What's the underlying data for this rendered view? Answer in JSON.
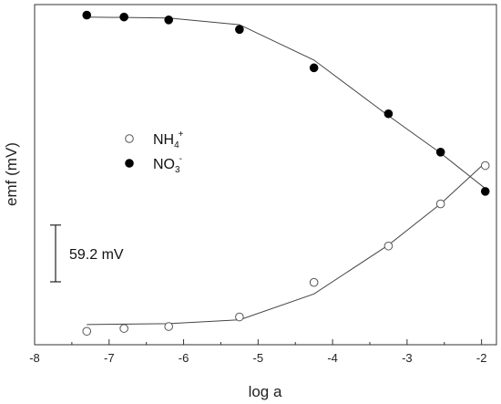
{
  "chart_data": {
    "type": "scatter",
    "xlabel": "log a",
    "ylabel": "emf (mV)",
    "xlim": [
      -8,
      -1.8
    ],
    "x_ticks": [
      -8,
      -7,
      -6,
      -5,
      -4,
      -3,
      -2
    ],
    "x_tick_labels": [
      "-8",
      "-7",
      "-6",
      "-5",
      "-4",
      "-3",
      "-2"
    ],
    "y_ticks_shown": false,
    "grid": false,
    "legend_position": "middle-left",
    "series": [
      {
        "name": "NH4+",
        "label_base": "NH",
        "label_sub": "4",
        "label_sup": "+",
        "marker": "open-circle",
        "color": "#333333",
        "points": [
          [
            -7.3,
            14
          ],
          [
            -6.8,
            17
          ],
          [
            -6.2,
            19
          ],
          [
            -5.25,
            29
          ],
          [
            -4.25,
            65
          ],
          [
            -3.25,
            103
          ],
          [
            -2.55,
            147
          ],
          [
            -1.95,
            187
          ]
        ],
        "fit": [
          [
            -7.3,
            21
          ],
          [
            -6.2,
            22
          ],
          [
            -5.25,
            26
          ],
          [
            -4.25,
            53
          ],
          [
            -3.25,
            104
          ],
          [
            -2.55,
            147
          ],
          [
            -1.95,
            190
          ]
        ]
      },
      {
        "name": "NO3-",
        "label_base": "NO",
        "label_sub": "3",
        "label_sup": "-",
        "marker": "filled-circle",
        "color": "#000000",
        "points": [
          [
            -7.3,
            344
          ],
          [
            -6.8,
            342
          ],
          [
            -6.2,
            339
          ],
          [
            -5.25,
            329
          ],
          [
            -4.25,
            289
          ],
          [
            -3.25,
            241
          ],
          [
            -2.55,
            201
          ],
          [
            -1.95,
            160
          ]
        ],
        "fit": [
          [
            -7.3,
            342
          ],
          [
            -6.2,
            341
          ],
          [
            -5.25,
            334
          ],
          [
            -4.25,
            297
          ],
          [
            -3.25,
            239
          ],
          [
            -2.55,
            200
          ],
          [
            -1.95,
            163
          ]
        ]
      }
    ],
    "scale_bar": {
      "label": "59.2 mV",
      "value": 59.2
    },
    "yrange_mV": [
      0,
      355
    ]
  }
}
